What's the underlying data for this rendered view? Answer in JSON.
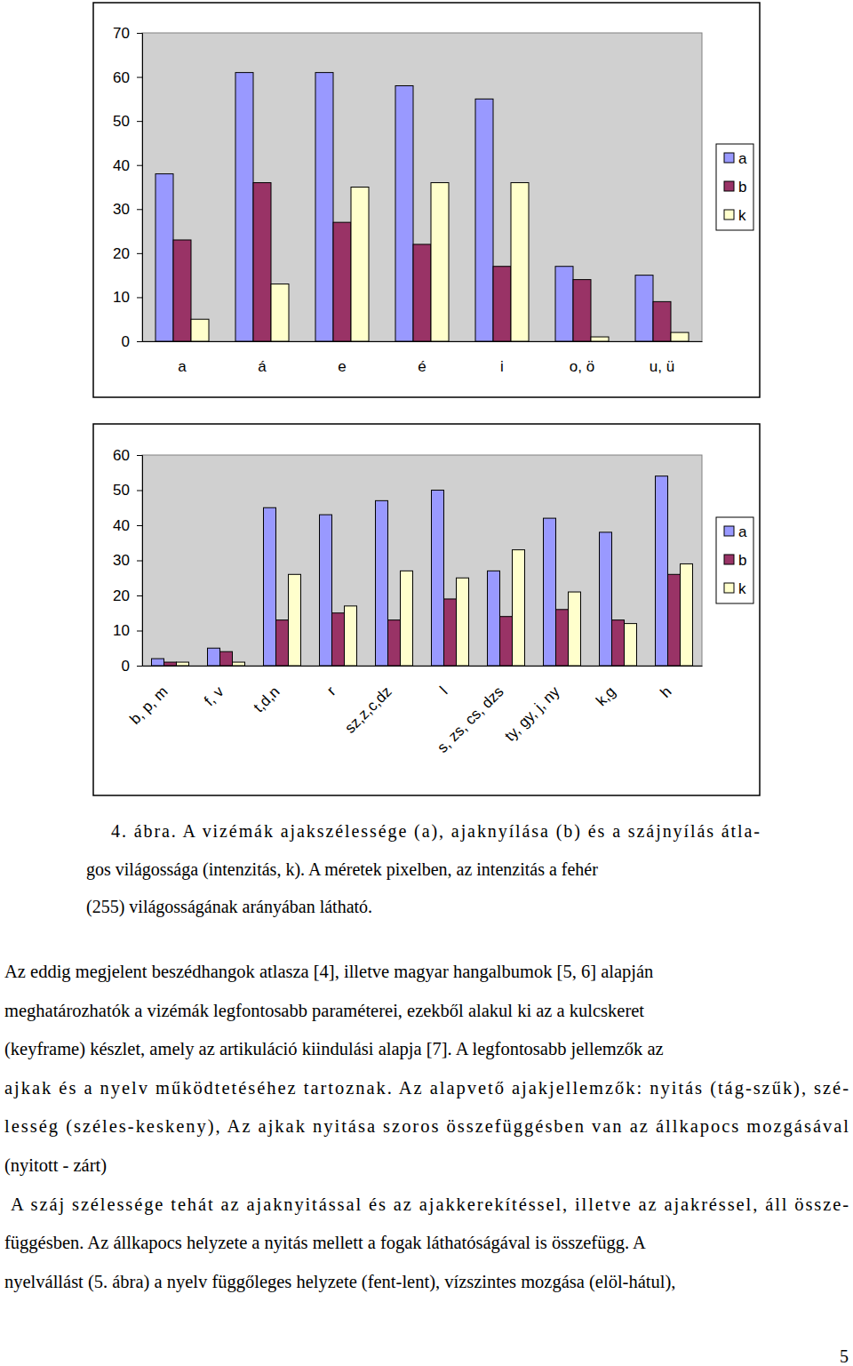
{
  "chart_data": [
    {
      "type": "bar",
      "categories": [
        "a",
        "á",
        "e",
        "é",
        "i",
        "o, ö",
        "u, ü"
      ],
      "series": [
        {
          "name": "a",
          "color": "#9999ff",
          "values": [
            38,
            61,
            61,
            58,
            55,
            17,
            15
          ]
        },
        {
          "name": "b",
          "color": "#993366",
          "values": [
            23,
            36,
            27,
            22,
            17,
            14,
            9
          ]
        },
        {
          "name": "k",
          "color": "#ffffcc",
          "values": [
            5,
            13,
            35,
            36,
            36,
            1,
            2
          ]
        }
      ],
      "ylim": [
        0,
        70
      ],
      "yticks": [
        0,
        10,
        20,
        30,
        40,
        50,
        60,
        70
      ],
      "grid": false,
      "legend": "right"
    },
    {
      "type": "bar",
      "categories": [
        "b, p, m",
        "f, v",
        "t,d,n",
        "r",
        "sz,z,c,dz",
        "l",
        "s, zs, cs, dzs",
        "ty, gy, j, ny",
        "k,g",
        "h"
      ],
      "series": [
        {
          "name": "a",
          "color": "#9999ff",
          "values": [
            2,
            5,
            45,
            43,
            47,
            50,
            27,
            42,
            38,
            54
          ]
        },
        {
          "name": "b",
          "color": "#993366",
          "values": [
            1,
            4,
            13,
            15,
            13,
            19,
            14,
            16,
            13,
            26
          ]
        },
        {
          "name": "k",
          "color": "#ffffcc",
          "values": [
            1,
            1,
            26,
            17,
            27,
            25,
            33,
            21,
            12,
            29
          ]
        }
      ],
      "ylim": [
        0,
        60
      ],
      "yticks": [
        0,
        10,
        20,
        30,
        40,
        50,
        60
      ],
      "grid": false,
      "legend": "right"
    }
  ],
  "caption": [
    "4. ábra. A vizémák ajakszélessége (a), ajaknyílása (b) és a szájnyílás átla-",
    "gos világossága (intenzitás, k). A méretek pixelben, az intenzitás a fehér",
    "(255) világosságának arányában látható."
  ],
  "body": [
    "Az eddig megjelent beszédhangok atlasza [4], illetve magyar hangalbumok [5, 6] alapján",
    "meghatározhatók a vizémák legfontosabb paraméterei, ezekből alakul ki az a kulcskeret",
    "(keyframe) készlet, amely az artikuláció kiindulási alapja [7]. A legfontosabb jellemzők az",
    "ajkak és a nyelv működtetéséhez tartoznak. Az alapvető ajakjellemzők: nyitás (tág-szűk), szé-",
    "lesség (széles-keskeny), Az ajkak nyitása szoros összefüggésben van az állkapocs mozgásával",
    "(nyitott - zárt)",
    "A száj szélessége tehát az ajaknyitással és az ajakkerekítéssel, illetve az ajakréssel, áll össze-",
    "függésben. Az állkapocs helyzete a nyitás mellett a fogak láthatóságával is összefügg. A",
    "nyelvállást (5. ábra) a nyelv függőleges helyzete (fent-lent), vízszintes mozgása (elöl-hátul),"
  ],
  "page_number": "5"
}
